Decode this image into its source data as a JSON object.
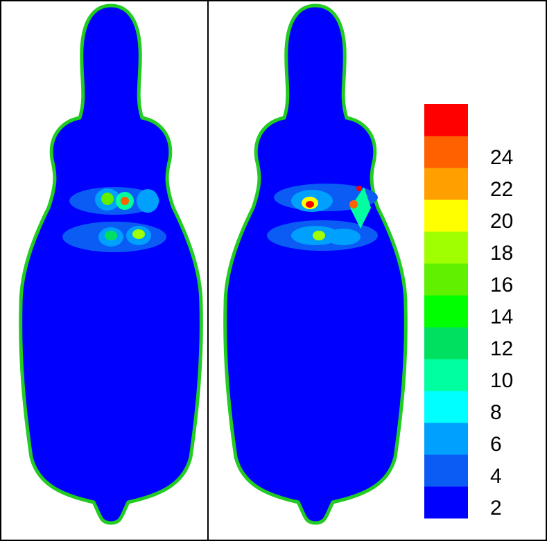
{
  "colorbar": {
    "ticks": [
      2,
      4,
      6,
      8,
      10,
      12,
      14,
      16,
      18,
      20,
      22,
      24
    ],
    "colors": [
      "#0000ff",
      "#0a5cf5",
      "#00a0ff",
      "#00ffff",
      "#00ffa0",
      "#00e060",
      "#00ff00",
      "#60f000",
      "#a0ff00",
      "#ffff00",
      "#ffa000",
      "#ff6000",
      "#ff0000"
    ]
  }
}
